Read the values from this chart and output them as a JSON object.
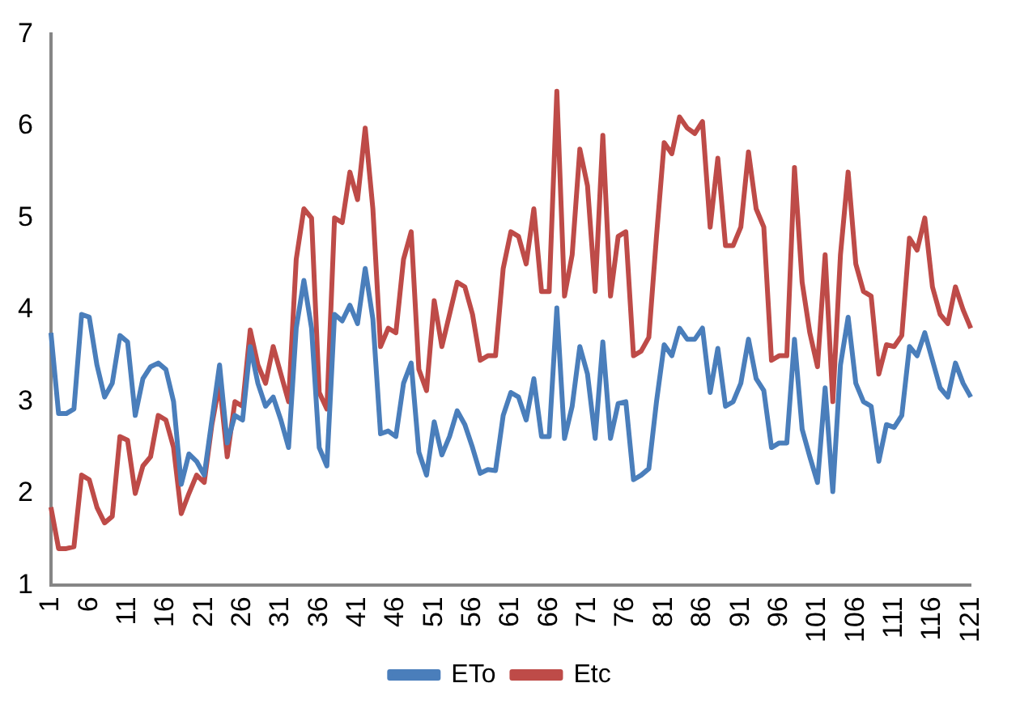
{
  "chart_data": {
    "type": "line",
    "categories": [
      "1",
      null,
      null,
      null,
      null,
      "6",
      null,
      null,
      null,
      null,
      "11",
      null,
      null,
      null,
      null,
      "16",
      null,
      null,
      null,
      null,
      "21",
      null,
      null,
      null,
      null,
      "26",
      null,
      null,
      null,
      null,
      "31",
      null,
      null,
      null,
      null,
      "36",
      null,
      null,
      null,
      null,
      "41",
      null,
      null,
      null,
      null,
      "46",
      null,
      null,
      null,
      null,
      "51",
      null,
      null,
      null,
      null,
      "56",
      null,
      null,
      null,
      null,
      "61",
      null,
      null,
      null,
      null,
      "66",
      null,
      null,
      null,
      null,
      "71",
      null,
      null,
      null,
      null,
      "76",
      null,
      null,
      null,
      null,
      "81",
      null,
      null,
      null,
      null,
      "86",
      null,
      null,
      null,
      null,
      "91",
      null,
      null,
      null,
      null,
      "96",
      null,
      null,
      null,
      null,
      "101",
      null,
      null,
      null,
      null,
      "106",
      null,
      null,
      null,
      null,
      "111",
      null,
      null,
      null,
      null,
      "116",
      null,
      null,
      null,
      null,
      "121"
    ],
    "series": [
      {
        "name": "ETo",
        "color": "#4a7ebb",
        "values": [
          3.75,
          2.87,
          2.87,
          2.92,
          3.95,
          3.92,
          3.4,
          3.05,
          3.2,
          3.72,
          3.65,
          2.85,
          3.25,
          3.38,
          3.42,
          3.35,
          3.0,
          2.1,
          2.43,
          2.35,
          2.2,
          2.8,
          3.4,
          2.55,
          2.85,
          2.8,
          3.6,
          3.2,
          2.95,
          3.05,
          2.8,
          2.5,
          3.8,
          4.32,
          3.8,
          2.5,
          2.3,
          3.95,
          3.88,
          4.05,
          3.85,
          4.45,
          3.9,
          2.65,
          2.68,
          2.62,
          3.2,
          3.42,
          2.45,
          2.2,
          2.78,
          2.42,
          2.62,
          2.9,
          2.75,
          2.5,
          2.22,
          2.26,
          2.25,
          2.85,
          3.1,
          3.05,
          2.8,
          3.25,
          2.62,
          2.62,
          4.02,
          2.6,
          2.95,
          3.6,
          3.3,
          2.6,
          3.65,
          2.6,
          2.98,
          3.0,
          2.15,
          2.2,
          2.27,
          3.0,
          3.62,
          3.5,
          3.8,
          3.68,
          3.68,
          3.8,
          3.1,
          3.58,
          2.95,
          3.0,
          3.2,
          3.68,
          3.25,
          3.12,
          2.5,
          2.55,
          2.55,
          3.68,
          2.7,
          2.4,
          2.12,
          3.15,
          2.02,
          3.4,
          3.92,
          3.2,
          3.0,
          2.95,
          2.35,
          2.75,
          2.72,
          2.85,
          3.6,
          3.5,
          3.75,
          3.45,
          3.15,
          3.05,
          3.42,
          3.2,
          3.05
        ]
      },
      {
        "name": "Etc",
        "color": "#be4b48",
        "values": [
          1.85,
          1.4,
          1.4,
          1.42,
          2.2,
          2.15,
          1.85,
          1.68,
          1.75,
          2.62,
          2.58,
          2.0,
          2.3,
          2.4,
          2.85,
          2.8,
          2.5,
          1.78,
          2.0,
          2.2,
          2.12,
          2.75,
          3.2,
          2.4,
          3.0,
          2.95,
          3.78,
          3.4,
          3.2,
          3.6,
          3.3,
          3.0,
          4.55,
          5.1,
          5.0,
          3.1,
          2.92,
          5.0,
          4.95,
          5.5,
          5.2,
          5.98,
          5.1,
          3.6,
          3.8,
          3.75,
          4.55,
          4.85,
          3.35,
          3.12,
          4.1,
          3.6,
          3.95,
          4.3,
          4.25,
          3.95,
          3.45,
          3.5,
          3.5,
          4.45,
          4.85,
          4.8,
          4.5,
          5.1,
          4.2,
          4.2,
          6.38,
          4.15,
          4.6,
          5.75,
          5.35,
          4.2,
          5.9,
          4.15,
          4.8,
          4.85,
          3.5,
          3.55,
          3.7,
          4.8,
          5.82,
          5.7,
          6.1,
          5.98,
          5.92,
          6.05,
          4.9,
          5.65,
          4.7,
          4.7,
          4.9,
          5.72,
          5.1,
          4.9,
          3.45,
          3.5,
          3.5,
          5.55,
          4.3,
          3.75,
          3.38,
          4.6,
          3.0,
          4.6,
          5.5,
          4.5,
          4.2,
          4.15,
          3.3,
          3.62,
          3.6,
          3.72,
          4.78,
          4.65,
          5.0,
          4.25,
          3.95,
          3.85,
          4.25,
          4.0,
          3.8
        ]
      }
    ],
    "ylim": [
      1,
      7
    ],
    "yticks": [
      1,
      2,
      3,
      4,
      5,
      6,
      7
    ],
    "grid": false,
    "legend": "bottom",
    "marker": "none",
    "line_style": "solid"
  }
}
